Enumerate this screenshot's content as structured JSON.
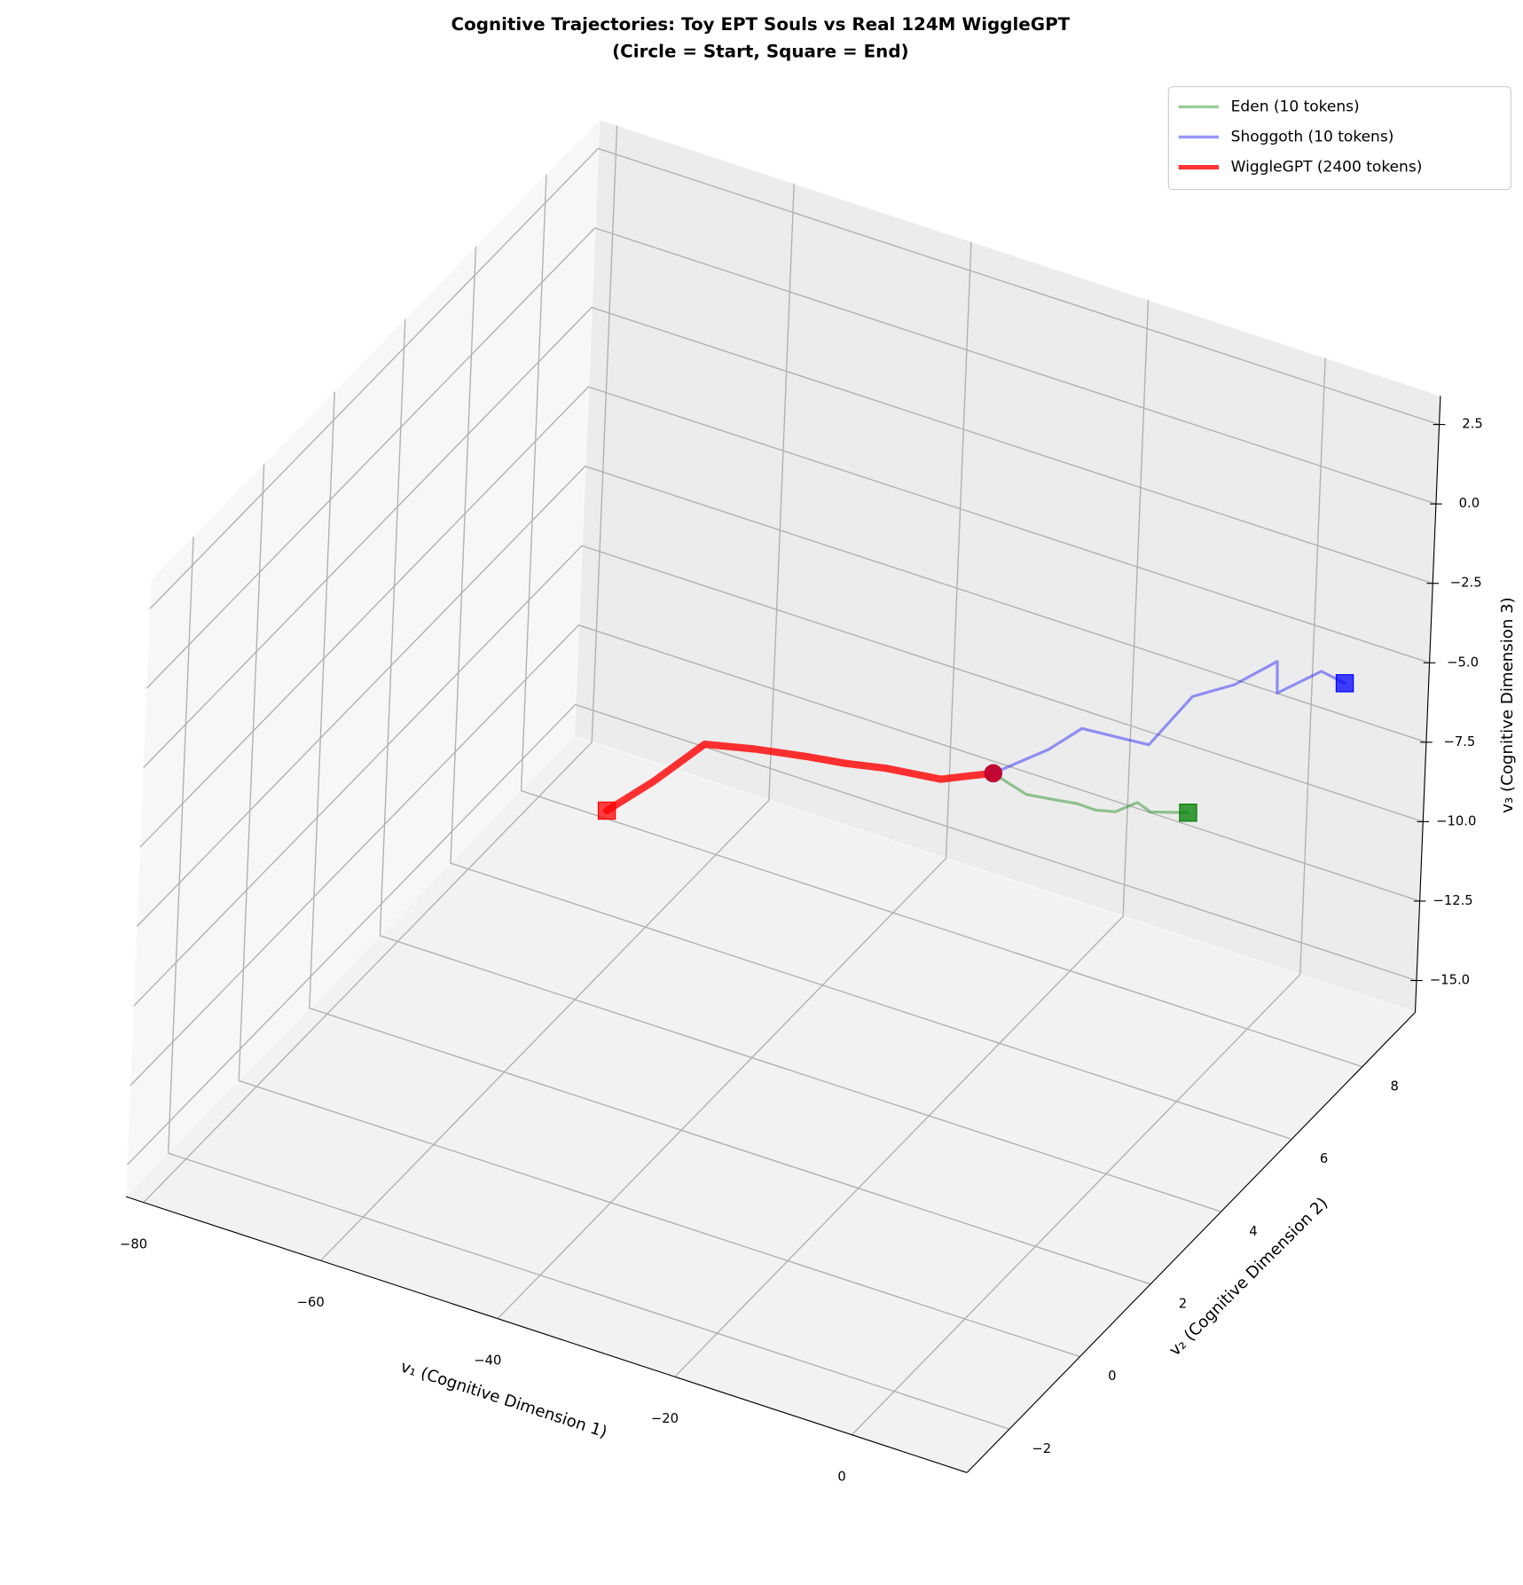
{
  "chart_data": {
    "type": "line3d",
    "title": "Cognitive Trajectories: Toy EPT Souls vs Real 124M WiggleGPT",
    "subtitle": "(Circle = Start, Square = End)",
    "xlabel": "v₁ (Cognitive Dimension 1)",
    "ylabel": "v₂ (Cognitive Dimension 2)",
    "zlabel": "v₃ (Cognitive Dimension 3)",
    "xlim": [
      -82,
      13
    ],
    "ylim": [
      -3.2,
      9.5
    ],
    "zlim": [
      -16,
      3.4
    ],
    "xticks": [
      {
        "value": -80,
        "label": "−80"
      },
      {
        "value": -60,
        "label": "−60"
      },
      {
        "value": -40,
        "label": "−40"
      },
      {
        "value": -20,
        "label": "−20"
      },
      0
    ],
    "yticks": [
      {
        "value": -2,
        "label": "−2"
      },
      0,
      2,
      4,
      6,
      8
    ],
    "zticks": [
      {
        "value": -15,
        "label": "−15.0"
      },
      {
        "value": -12.5,
        "label": "−12.5"
      },
      {
        "value": -10,
        "label": "−10.0"
      },
      {
        "value": -7.5,
        "label": "−7.5"
      },
      {
        "value": -5,
        "label": "−5.0"
      },
      {
        "value": -2.5,
        "label": "−2.5"
      },
      {
        "value": 0,
        "label": "0.0"
      },
      2.5
    ],
    "grid": true,
    "legend": "upper right",
    "series": [
      {
        "name": "Eden (10 tokens)",
        "color": "#008000",
        "alpha": 0.4,
        "linewidth": 2,
        "x": [
          -15.9,
          -14.2,
          -12.1,
          -9.0,
          -6.4,
          -4.3,
          -2.1,
          0.3,
          1.8,
          6.0
        ],
        "y": [
          4.4,
          4.4,
          4.4,
          4.4,
          4.4,
          4.4,
          4.4,
          4.4,
          4.4,
          4.4
        ],
        "z": [
          -5.3,
          -5.45,
          -5.62,
          -5.5,
          -5.39,
          -5.4,
          -5.25,
          -4.74,
          -4.9,
          -4.54
        ]
      },
      {
        "name": "Shoggoth (10 tokens)",
        "color": "#0000ff",
        "alpha": 0.4,
        "linewidth": 2,
        "x": [
          -15.9,
          -11.0,
          -8.1,
          -1.7,
          2.2,
          5.7,
          9.6,
          8.6,
          12.3,
          14.2
        ],
        "y": [
          4.4,
          4.7,
          4.9,
          5.2,
          5.4,
          5.7,
          5.9,
          6.2,
          6.5,
          6.7
        ],
        "z": [
          -5.3,
          -4.45,
          -3.75,
          -4.02,
          -2.37,
          -2.02,
          -1.16,
          -2.59,
          -1.91,
          -2.34
        ]
      },
      {
        "name": "WiggleGPT (2400 tokens)",
        "color": "#ff0000",
        "alpha": 0.8,
        "linewidth": 3,
        "x": [
          -15.9,
          -18.9,
          -21.7,
          -27.9,
          -32.4,
          -36.9,
          -42.6,
          -48.2,
          -53.7,
          -58.8
        ],
        "y": [
          4.4,
          4.4,
          4.4,
          4.4,
          4.4,
          4.4,
          4.4,
          4.4,
          4.4,
          4.4
        ],
        "z": [
          -5.3,
          -5.67,
          -6.02,
          -6.24,
          -6.5,
          -6.69,
          -6.98,
          -7.34,
          -9.01,
          -10.4
        ]
      }
    ]
  }
}
